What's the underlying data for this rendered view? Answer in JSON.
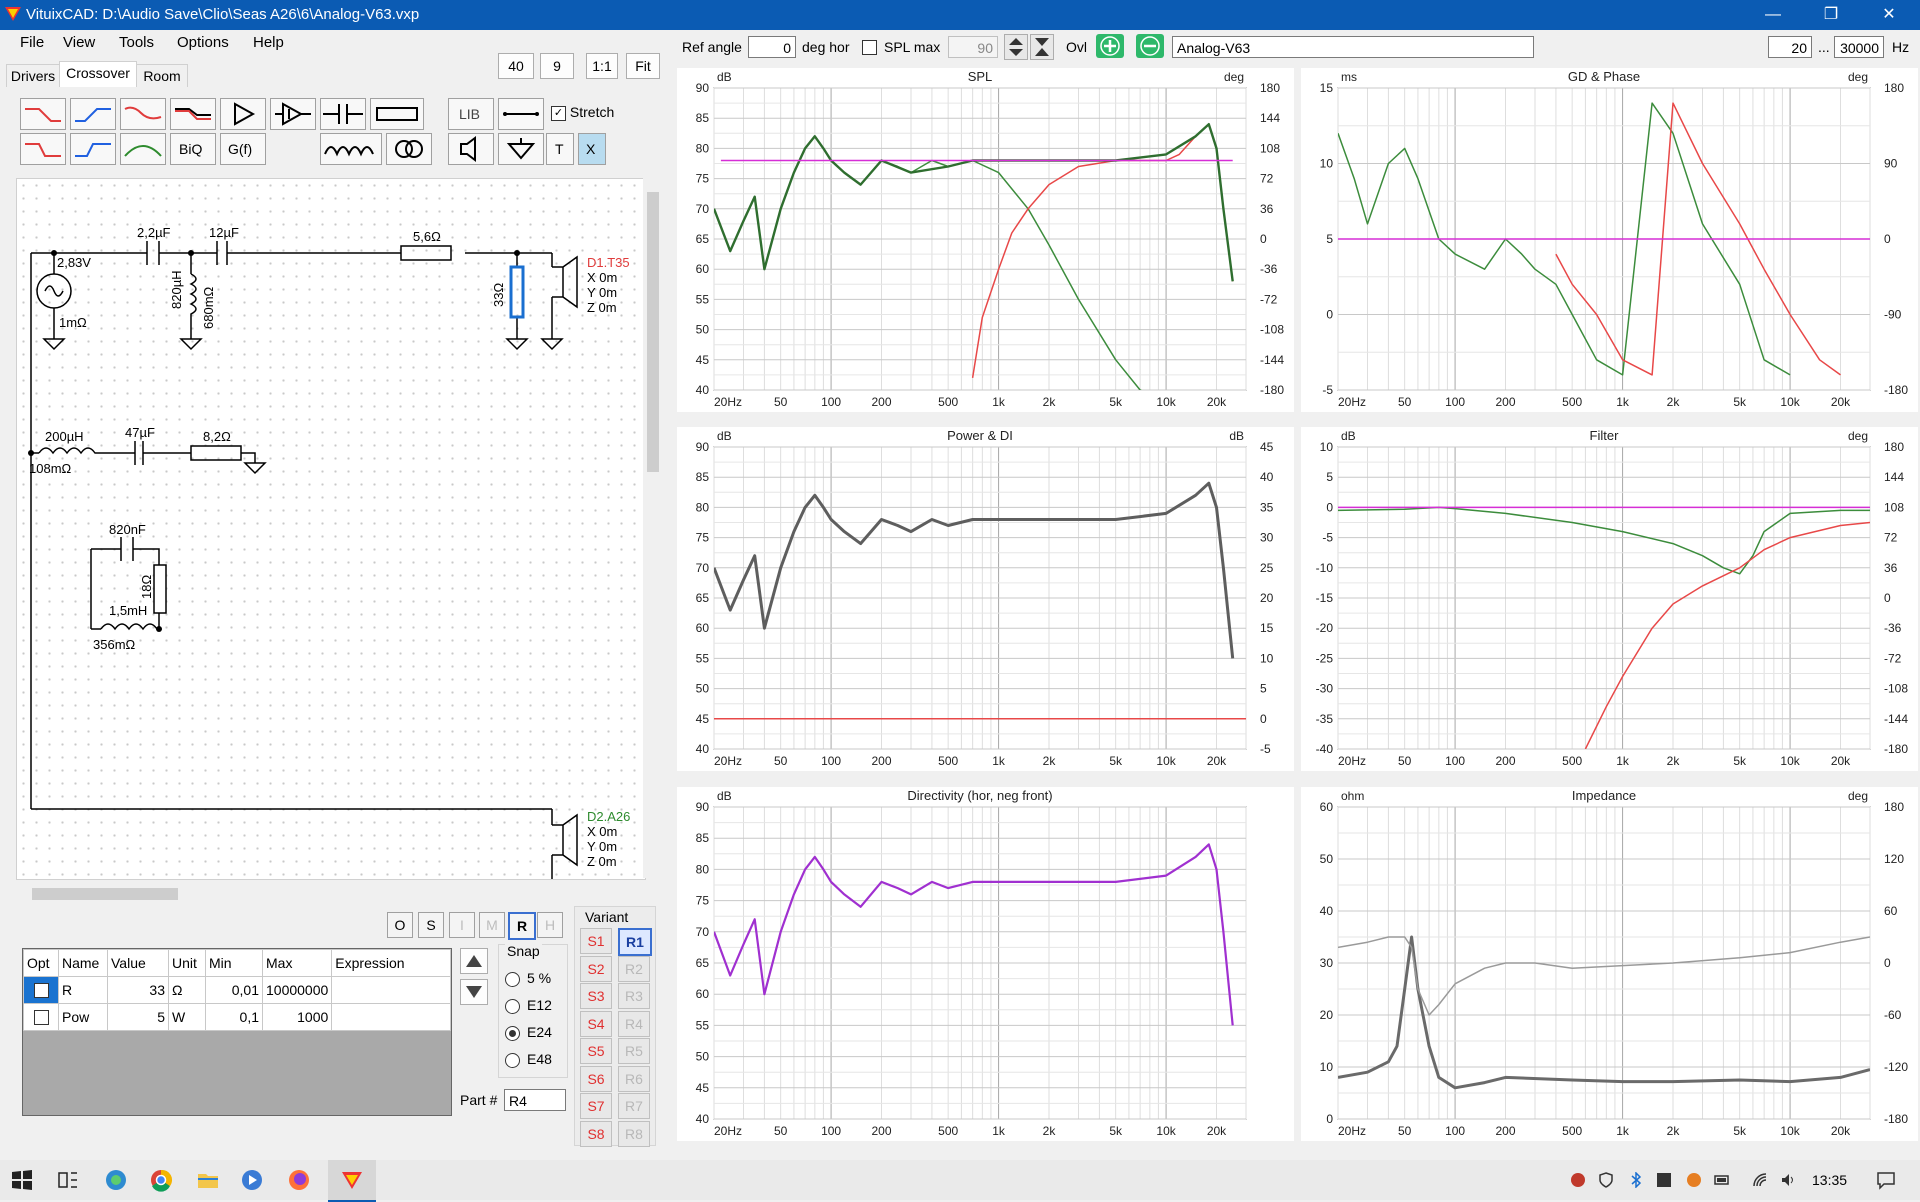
{
  "window": {
    "title": "VituixCAD: D:\\Audio Save\\Clio\\Seas A26\\6\\Analog-V63.vxp",
    "minimize": "—",
    "restore": "❐",
    "close": "✕"
  },
  "menu": {
    "file": "File",
    "view": "View",
    "tools": "Tools",
    "options": "Options",
    "help": "Help"
  },
  "tabs": {
    "drivers": "Drivers",
    "crossover": "Crossover",
    "room": "Room"
  },
  "view_controls": {
    "zoom": "40",
    "grid": "9",
    "one_to_one": "1:1",
    "fit": "Fit"
  },
  "palette": {
    "stretch_label": "Stretch",
    "lib": "LIB",
    "biq": "BiQ",
    "gf": "G(f)",
    "t": "T",
    "x": "X"
  },
  "toolbar": {
    "ref_angle_label": "Ref angle",
    "ref_angle_value": "0",
    "deg_hor_label": "deg hor",
    "spl_max_label": "SPL max",
    "spl_max_value": "90",
    "ovl_label": "Ovl",
    "variant_name": "Analog-V63",
    "freq_min": "20",
    "freq_sep": "...",
    "freq_max": "30000",
    "freq_unit": "Hz"
  },
  "schematic": {
    "gen_v": "2,83V",
    "gen_r": "1mΩ",
    "c1": "2,2µF",
    "c2": "12µF",
    "l1": "820µH",
    "l1r": "680mΩ",
    "r1": "5,6Ω",
    "r2": "33Ω",
    "d1": "D1.T35",
    "d1x": "X 0m",
    "d1y": "Y 0m",
    "d1z": "Z 0m",
    "l2": "200µH",
    "l2r": "108mΩ",
    "c3": "47µF",
    "r3": "8,2Ω",
    "c4": "820nF",
    "r4": "18Ω",
    "l3": "1,5mH",
    "l3r": "356mΩ",
    "d2": "D2.A26",
    "d2x": "X 0m",
    "d2y": "Y 0m",
    "d2z": "Z 0m"
  },
  "snapbar": {
    "o": "O",
    "s": "S",
    "i": "I",
    "m": "M",
    "r": "R",
    "h": "H"
  },
  "parts_table": {
    "headers": [
      "Opt",
      "Name",
      "Value",
      "Unit",
      "Min",
      "Max",
      "Expression"
    ],
    "rows": [
      {
        "name": "R",
        "value": "33",
        "unit": "Ω",
        "min": "0,01",
        "max": "10000000",
        "expr": ""
      },
      {
        "name": "Pow",
        "value": "5",
        "unit": "W",
        "min": "0,1",
        "max": "1000",
        "expr": ""
      }
    ]
  },
  "snap": {
    "title": "Snap",
    "opt1": "5 %",
    "opt2": "E12",
    "opt3": "E24",
    "opt4": "E48",
    "selected": "E24"
  },
  "part_field": {
    "label": "Part #",
    "value": "R4"
  },
  "variant": {
    "title": "Variant",
    "s": [
      "S1",
      "S2",
      "S3",
      "S4",
      "S5",
      "S6",
      "S7",
      "S8"
    ],
    "r": [
      "R1",
      "R2",
      "R3",
      "R4",
      "R5",
      "R6",
      "R7",
      "R8"
    ],
    "active": "R1"
  },
  "taskbar": {
    "time": "13:35"
  },
  "colors": {
    "accent": "#0b5bb3",
    "trace_green": "#2e8b2e",
    "trace_red": "#e03c3c",
    "trace_magenta": "#d62ed6",
    "trace_gray": "#606060",
    "purple": "#a030d0"
  },
  "chart_data": [
    {
      "type": "line",
      "title": "SPL",
      "ylabel": "dB",
      "y2label": "deg",
      "ylim": [
        40,
        90
      ],
      "y2lim": [
        -180,
        180
      ],
      "xlim": [
        20,
        30000
      ],
      "xscale": "log",
      "yticks": [
        "90",
        "85",
        "80",
        "75",
        "70",
        "65",
        "60",
        "55",
        "50",
        "45",
        "40"
      ],
      "y2ticks": [
        "180",
        "144",
        "108",
        "72",
        "36",
        "0",
        "-36",
        "-72",
        "-108",
        "-144",
        "-180"
      ],
      "xticks": [
        "20Hz",
        "50",
        "100",
        "200",
        "500",
        "1k",
        "2k",
        "5k",
        "10k",
        "20k"
      ],
      "series": [
        {
          "color": "green",
          "x": [
            20,
            25,
            30,
            35,
            40,
            50,
            60,
            70,
            80,
            90,
            100,
            120,
            150,
            200,
            250,
            300,
            400,
            500,
            700,
            1000,
            1500,
            2000,
            3000,
            5000,
            7000,
            10000
          ],
          "y": [
            70,
            63,
            68,
            72,
            60,
            70,
            76,
            80,
            82,
            80,
            78,
            76,
            74,
            78,
            77,
            76,
            78,
            77,
            78,
            76,
            70,
            64,
            55,
            45,
            40,
            38
          ]
        },
        {
          "color": "red",
          "x": [
            700,
            800,
            1000,
            1200,
            1500,
            2000,
            3000,
            5000,
            7000,
            10000,
            12000,
            15000,
            18000,
            20000,
            22000,
            25000
          ],
          "y": [
            42,
            52,
            60,
            66,
            70,
            74,
            77,
            78,
            78,
            78,
            79,
            82,
            84,
            80,
            70,
            58
          ]
        },
        {
          "color": "darkgreen",
          "x": [
            20,
            25,
            30,
            35,
            40,
            50,
            60,
            70,
            80,
            90,
            100,
            120,
            150,
            200,
            300,
            500,
            700,
            1000,
            2000,
            3000,
            5000,
            10000,
            15000,
            18000,
            20000,
            22000,
            25000
          ],
          "y": [
            70,
            63,
            68,
            72,
            60,
            70,
            76,
            80,
            82,
            80,
            78,
            76,
            74,
            78,
            76,
            77,
            78,
            78,
            78,
            78,
            78,
            79,
            82,
            84,
            80,
            70,
            58
          ]
        },
        {
          "color": "magenta",
          "x": [
            22,
            25000
          ],
          "y": [
            78,
            78
          ]
        }
      ]
    },
    {
      "type": "line",
      "title": "GD & Phase",
      "ylabel": "ms",
      "y2label": "deg",
      "ylim": [
        -5,
        15
      ],
      "y2lim": [
        -180,
        180
      ],
      "xscale": "log",
      "yticks": [
        "15",
        "10",
        "5",
        "0",
        "-5"
      ],
      "y2ticks": [
        "180",
        "90",
        "0",
        "-90",
        "-180"
      ],
      "xticks": [
        "20Hz",
        "50",
        "100",
        "200",
        "500",
        "1k",
        "2k",
        "5k",
        "10k",
        "20k"
      ],
      "series": [
        {
          "color": "green",
          "x": [
            20,
            25,
            30,
            40,
            50,
            60,
            80,
            100,
            150,
            200,
            250,
            300,
            400,
            500,
            700,
            1000,
            1500,
            2000,
            3000,
            5000,
            7000,
            10000
          ],
          "y": [
            12,
            9,
            6,
            10,
            11,
            9,
            5,
            4,
            3,
            5,
            4,
            3,
            2,
            0,
            -3,
            -4,
            14,
            12,
            6,
            2,
            -3,
            -4
          ]
        },
        {
          "color": "red",
          "x": [
            400,
            500,
            700,
            1000,
            1500,
            2000,
            3000,
            5000,
            7000,
            10000,
            15000,
            20000
          ],
          "y": [
            4,
            2,
            0,
            -3,
            -4,
            14,
            10,
            6,
            3,
            0,
            -3,
            -4
          ]
        },
        {
          "color": "magenta",
          "x": [
            20,
            30000
          ],
          "y": [
            5,
            5
          ]
        }
      ]
    },
    {
      "type": "line",
      "title": "Power & DI",
      "ylabel": "dB",
      "y2label": "dB",
      "ylim": [
        40,
        90
      ],
      "y2lim": [
        -5,
        45
      ],
      "xscale": "log",
      "yticks": [
        "90",
        "85",
        "80",
        "75",
        "70",
        "65",
        "60",
        "55",
        "50",
        "45",
        "40"
      ],
      "y2ticks": [
        "45",
        "40",
        "35",
        "30",
        "25",
        "20",
        "15",
        "10",
        "5",
        "0",
        "-5"
      ],
      "xticks": [
        "20Hz",
        "50",
        "100",
        "200",
        "500",
        "1k",
        "2k",
        "5k",
        "10k",
        "20k"
      ],
      "series": [
        {
          "color": "gray",
          "x": [
            20,
            25,
            30,
            35,
            40,
            50,
            60,
            70,
            80,
            90,
            100,
            120,
            150,
            200,
            250,
            300,
            400,
            500,
            700,
            1000,
            2000,
            3000,
            5000,
            10000,
            15000,
            18000,
            20000,
            22000,
            25000
          ],
          "y": [
            70,
            63,
            68,
            72,
            60,
            70,
            76,
            80,
            82,
            80,
            78,
            76,
            74,
            78,
            77,
            76,
            78,
            77,
            78,
            78,
            78,
            78,
            78,
            79,
            82,
            84,
            80,
            70,
            55
          ]
        },
        {
          "color": "red",
          "x": [
            20,
            30000
          ],
          "y": [
            45,
            45
          ]
        }
      ]
    },
    {
      "type": "line",
      "title": "Filter",
      "ylabel": "dB",
      "y2label": "deg",
      "ylim": [
        -40,
        10
      ],
      "y2lim": [
        -180,
        180
      ],
      "xscale": "log",
      "yticks": [
        "10",
        "5",
        "0",
        "-5",
        "-10",
        "-15",
        "-20",
        "-25",
        "-30",
        "-35",
        "-40"
      ],
      "y2ticks": [
        "180",
        "144",
        "108",
        "72",
        "36",
        "0",
        "-36",
        "-72",
        "-108",
        "-144",
        "-180"
      ],
      "xticks": [
        "20Hz",
        "50",
        "100",
        "200",
        "500",
        "1k",
        "2k",
        "5k",
        "10k",
        "20k"
      ],
      "series": [
        {
          "color": "green",
          "x": [
            20,
            50,
            80,
            100,
            200,
            500,
            1000,
            2000,
            3000,
            4000,
            5000,
            6000,
            7000,
            10000,
            20000,
            30000
          ],
          "y": [
            -0.5,
            -0.3,
            0,
            -0.2,
            -1,
            -2.5,
            -4,
            -6,
            -8,
            -10,
            -11,
            -8,
            -4,
            -1,
            -0.5,
            -0.5
          ]
        },
        {
          "color": "red",
          "x": [
            600,
            800,
            1000,
            1500,
            2000,
            3000,
            5000,
            7000,
            10000,
            20000,
            30000
          ],
          "y": [
            -40,
            -33,
            -28,
            -20,
            -16,
            -13,
            -10,
            -7,
            -5,
            -3,
            -2.5
          ]
        },
        {
          "color": "magenta",
          "x": [
            20,
            30000
          ],
          "y": [
            0,
            0
          ]
        }
      ]
    },
    {
      "type": "line",
      "title": "Directivity (hor, neg front)",
      "ylabel": "dB",
      "ylim": [
        40,
        90
      ],
      "xscale": "log",
      "yticks": [
        "90",
        "85",
        "80",
        "75",
        "70",
        "65",
        "60",
        "55",
        "50",
        "45",
        "40"
      ],
      "xticks": [
        "20Hz",
        "50",
        "100",
        "200",
        "500",
        "1k",
        "2k",
        "5k",
        "10k",
        "20k"
      ],
      "series": [
        {
          "color": "purple",
          "x": [
            20,
            25,
            30,
            35,
            40,
            50,
            60,
            70,
            80,
            90,
            100,
            120,
            150,
            200,
            250,
            300,
            400,
            500,
            700,
            1000,
            2000,
            3000,
            5000,
            10000,
            15000,
            18000,
            20000,
            22000,
            25000
          ],
          "y": [
            70,
            63,
            68,
            72,
            60,
            70,
            76,
            80,
            82,
            80,
            78,
            76,
            74,
            78,
            77,
            76,
            78,
            77,
            78,
            78,
            78,
            78,
            78,
            79,
            82,
            84,
            80,
            70,
            55
          ]
        }
      ]
    },
    {
      "type": "line",
      "title": "Impedance",
      "ylabel": "ohm",
      "y2label": "deg",
      "ylim": [
        0,
        60
      ],
      "y2lim": [
        -180,
        180
      ],
      "xscale": "log",
      "yticks": [
        "60",
        "50",
        "40",
        "30",
        "20",
        "10",
        "0"
      ],
      "y2ticks": [
        "180",
        "120",
        "60",
        "0",
        "-60",
        "-120",
        "-180"
      ],
      "xticks": [
        "20Hz",
        "50",
        "100",
        "200",
        "500",
        "1k",
        "2k",
        "5k",
        "10k",
        "20k"
      ],
      "series": [
        {
          "color": "darkgray",
          "x": [
            20,
            30,
            40,
            45,
            50,
            55,
            60,
            70,
            80,
            100,
            150,
            200,
            500,
            1000,
            2000,
            5000,
            10000,
            20000,
            30000
          ],
          "y": [
            8,
            9,
            11,
            14,
            25,
            35,
            25,
            14,
            8,
            6,
            7,
            8,
            7.5,
            7.2,
            7.2,
            7.5,
            7.2,
            8,
            9.5
          ]
        },
        {
          "color": "lightgray",
          "x": [
            20,
            30,
            40,
            50,
            55,
            60,
            70,
            80,
            100,
            150,
            200,
            300,
            500,
            1000,
            2000,
            5000,
            10000,
            20000,
            30000
          ],
          "y": [
            33,
            34,
            35,
            35,
            33,
            25,
            20,
            22,
            26,
            29,
            30,
            30,
            29,
            29.5,
            30,
            31,
            32,
            34,
            35
          ]
        }
      ]
    }
  ]
}
